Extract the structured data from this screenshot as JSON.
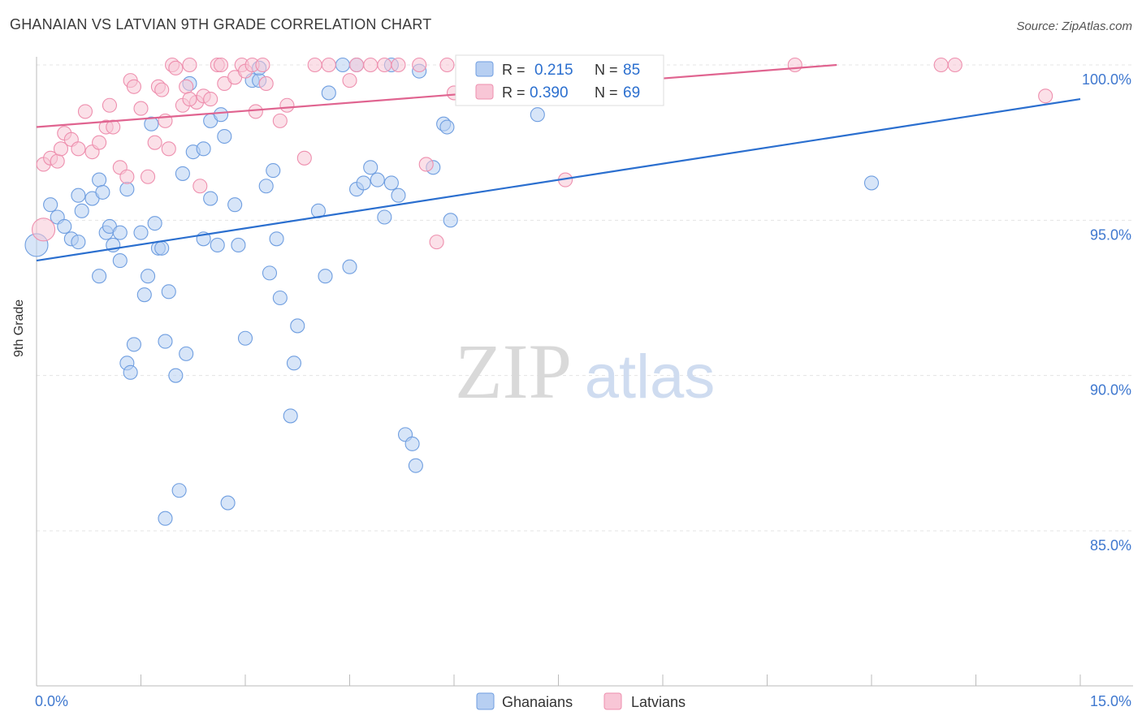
{
  "title": "GHANAIAN VS LATVIAN 9TH GRADE CORRELATION CHART",
  "source": "Source: ZipAtlas.com",
  "watermark": {
    "zip": "ZIP",
    "atlas": "atlas"
  },
  "chart_data": {
    "type": "scatter",
    "title": "GHANAIAN VS LATVIAN 9TH GRADE CORRELATION CHART",
    "xlabel": "",
    "ylabel": "9th Grade",
    "xlim": [
      0,
      15
    ],
    "ylim": [
      80.5,
      100.7
    ],
    "x_tick_labels": [
      {
        "value": 0,
        "label": "0.0%"
      },
      {
        "value": 15,
        "label": "15.0%"
      }
    ],
    "y_tick_labels": [
      {
        "value": 100,
        "label": "100.0%"
      },
      {
        "value": 95,
        "label": "95.0%"
      },
      {
        "value": 90,
        "label": "90.0%"
      },
      {
        "value": 85,
        "label": "85.0%"
      }
    ],
    "legend_position": "top-center",
    "series": [
      {
        "name": "Ghanaians",
        "color": "#6f9ee0",
        "fill": "#b7cff2",
        "line_color": "#2b6fcf",
        "R": "0.215",
        "N": "85",
        "trend": [
          [
            0,
            93.7
          ],
          [
            15,
            98.9
          ]
        ],
        "points": [
          [
            0.0,
            94.2
          ],
          [
            0.2,
            95.5
          ],
          [
            0.3,
            95.1
          ],
          [
            0.4,
            94.8
          ],
          [
            0.5,
            94.4
          ],
          [
            0.6,
            95.8
          ],
          [
            0.65,
            95.3
          ],
          [
            0.8,
            95.7
          ],
          [
            0.9,
            96.3
          ],
          [
            0.9,
            93.2
          ],
          [
            0.95,
            95.9
          ],
          [
            1.0,
            94.6
          ],
          [
            1.05,
            94.8
          ],
          [
            1.1,
            94.2
          ],
          [
            1.2,
            93.7
          ],
          [
            1.3,
            96.0
          ],
          [
            1.3,
            90.4
          ],
          [
            1.35,
            90.1
          ],
          [
            1.4,
            91.0
          ],
          [
            1.5,
            94.6
          ],
          [
            1.55,
            92.6
          ],
          [
            1.6,
            93.2
          ],
          [
            1.65,
            98.1
          ],
          [
            1.7,
            94.9
          ],
          [
            1.75,
            94.1
          ],
          [
            1.8,
            94.1
          ],
          [
            1.85,
            91.1
          ],
          [
            1.9,
            92.7
          ],
          [
            2.0,
            90.0
          ],
          [
            2.05,
            86.3
          ],
          [
            2.1,
            96.5
          ],
          [
            2.15,
            90.7
          ],
          [
            2.2,
            99.4
          ],
          [
            2.25,
            97.2
          ],
          [
            2.4,
            97.3
          ],
          [
            2.4,
            94.4
          ],
          [
            2.5,
            95.7
          ],
          [
            2.5,
            98.2
          ],
          [
            2.6,
            94.2
          ],
          [
            2.65,
            98.4
          ],
          [
            2.7,
            97.7
          ],
          [
            2.75,
            85.9
          ],
          [
            2.85,
            95.5
          ],
          [
            2.9,
            94.2
          ],
          [
            3.0,
            91.2
          ],
          [
            3.1,
            99.5
          ],
          [
            3.2,
            99.5
          ],
          [
            3.3,
            96.1
          ],
          [
            3.35,
            93.3
          ],
          [
            3.4,
            96.6
          ],
          [
            3.45,
            94.4
          ],
          [
            3.5,
            92.5
          ],
          [
            3.7,
            90.4
          ],
          [
            3.75,
            91.6
          ],
          [
            3.65,
            88.7
          ],
          [
            4.05,
            95.3
          ],
          [
            4.15,
            93.2
          ],
          [
            4.2,
            99.1
          ],
          [
            4.4,
            100.0
          ],
          [
            4.5,
            93.5
          ],
          [
            4.6,
            96.0
          ],
          [
            4.7,
            96.2
          ],
          [
            4.8,
            96.7
          ],
          [
            4.9,
            96.3
          ],
          [
            5.0,
            95.1
          ],
          [
            5.1,
            96.2
          ],
          [
            5.2,
            95.8
          ],
          [
            5.3,
            88.1
          ],
          [
            5.4,
            87.8
          ],
          [
            5.45,
            87.1
          ],
          [
            5.5,
            99.8
          ],
          [
            5.7,
            96.7
          ],
          [
            5.85,
            98.1
          ],
          [
            5.9,
            98.0
          ],
          [
            5.95,
            95.0
          ],
          [
            6.2,
            99.3
          ],
          [
            6.5,
            100.0
          ],
          [
            7.2,
            98.4
          ],
          [
            12.0,
            96.2
          ],
          [
            0.6,
            94.3
          ],
          [
            1.2,
            94.6
          ],
          [
            1.85,
            85.4
          ],
          [
            3.2,
            99.9
          ],
          [
            4.6,
            100.0
          ],
          [
            5.1,
            100.0
          ]
        ]
      },
      {
        "name": "Latvians",
        "color": "#ee8fae",
        "fill": "#f8c6d6",
        "line_color": "#e06490",
        "R": "0.390",
        "N": "69",
        "trend": [
          [
            0,
            98.0
          ],
          [
            11.5,
            100.0
          ]
        ],
        "points": [
          [
            0.1,
            94.7
          ],
          [
            0.1,
            96.8
          ],
          [
            0.2,
            97.0
          ],
          [
            0.3,
            96.9
          ],
          [
            0.35,
            97.3
          ],
          [
            0.4,
            97.8
          ],
          [
            0.5,
            97.6
          ],
          [
            0.6,
            97.3
          ],
          [
            0.7,
            98.5
          ],
          [
            0.8,
            97.2
          ],
          [
            0.9,
            97.5
          ],
          [
            1.0,
            98.0
          ],
          [
            1.05,
            98.7
          ],
          [
            1.1,
            98.0
          ],
          [
            1.2,
            96.7
          ],
          [
            1.3,
            96.4
          ],
          [
            1.35,
            99.5
          ],
          [
            1.4,
            99.3
          ],
          [
            1.5,
            98.6
          ],
          [
            1.6,
            96.4
          ],
          [
            1.7,
            97.5
          ],
          [
            1.75,
            99.3
          ],
          [
            1.8,
            99.2
          ],
          [
            1.85,
            98.2
          ],
          [
            1.9,
            97.3
          ],
          [
            1.95,
            100.0
          ],
          [
            2.0,
            99.9
          ],
          [
            2.1,
            98.7
          ],
          [
            2.15,
            99.3
          ],
          [
            2.2,
            100.0
          ],
          [
            2.3,
            98.8
          ],
          [
            2.35,
            96.1
          ],
          [
            2.4,
            99.0
          ],
          [
            2.5,
            98.9
          ],
          [
            2.6,
            100.0
          ],
          [
            2.65,
            100.0
          ],
          [
            2.7,
            99.4
          ],
          [
            2.85,
            99.6
          ],
          [
            2.95,
            100.0
          ],
          [
            3.0,
            99.8
          ],
          [
            3.1,
            100.0
          ],
          [
            3.15,
            98.5
          ],
          [
            3.25,
            100.0
          ],
          [
            3.5,
            98.2
          ],
          [
            3.6,
            98.7
          ],
          [
            3.85,
            97.0
          ],
          [
            4.0,
            100.0
          ],
          [
            4.2,
            100.0
          ],
          [
            4.5,
            99.5
          ],
          [
            4.6,
            100.0
          ],
          [
            4.8,
            100.0
          ],
          [
            5.0,
            100.0
          ],
          [
            5.2,
            100.0
          ],
          [
            5.5,
            100.0
          ],
          [
            5.6,
            96.8
          ],
          [
            5.75,
            94.3
          ],
          [
            5.9,
            100.0
          ],
          [
            6.2,
            99.3
          ],
          [
            6.5,
            100.0
          ],
          [
            7.0,
            100.0
          ],
          [
            7.6,
            96.3
          ],
          [
            8.2,
            100.0
          ],
          [
            10.9,
            100.0
          ],
          [
            13.0,
            100.0
          ],
          [
            13.2,
            100.0
          ],
          [
            14.5,
            99.0
          ],
          [
            6.0,
            99.1
          ],
          [
            3.3,
            99.4
          ],
          [
            2.2,
            98.9
          ]
        ]
      }
    ]
  },
  "legend_bottom": [
    {
      "label": "Ghanaians"
    },
    {
      "label": "Latvians"
    }
  ],
  "legend_top": {
    "r_label": "R = ",
    "n_label": "N = "
  }
}
